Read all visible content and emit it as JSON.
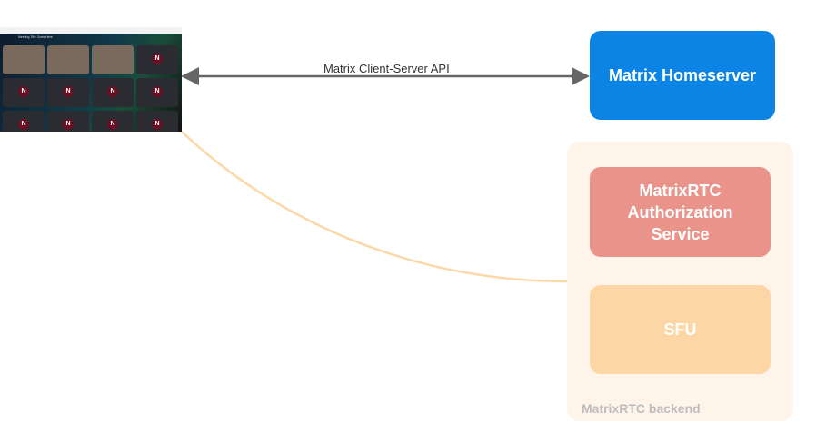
{
  "screenshot": {
    "meeting_title": "Meeting Title Goes Here",
    "tile_avatar_letter": "N"
  },
  "edges": {
    "client_server_api": "Matrix Client-Server API"
  },
  "nodes": {
    "homeserver": "Matrix Homeserver",
    "auth_service": "MatrixRTC Authorization Service",
    "sfu": "SFU",
    "backend_group": "MatrixRTC backend"
  },
  "colors": {
    "homeserver": "#0b84e6",
    "auth_service": "#ea938b",
    "sfu": "#fdd6a6",
    "backend_group": "#fef4e9",
    "connector": "#fcd8a8",
    "arrow": "#666666"
  }
}
